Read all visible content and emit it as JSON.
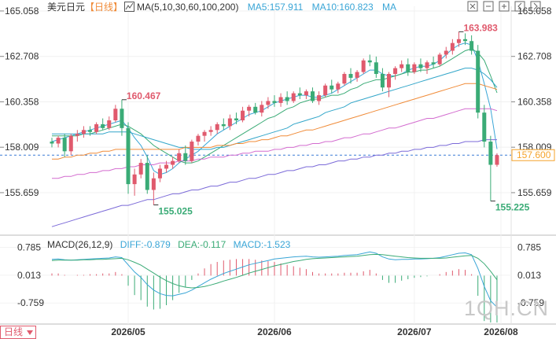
{
  "toolbar": {
    "symbol": "美元日元",
    "period": "【日线】",
    "ma_label": "MA(5,10,30,60,100,200)",
    "ma5": "MA5:157.911",
    "ma10": "MA10:160.823",
    "ma_more": "MA"
  },
  "macd_header": {
    "label": "MACD(26,12,9)",
    "diff": "DIFF:-0.879",
    "dea": "DEA:-0.117",
    "macd": "MACD:-1.523"
  },
  "footer": {
    "period_btn": "日线",
    "watermark": "1QH.CN"
  },
  "colors": {
    "up": "#e05a6d",
    "down": "#3aab76",
    "ma5": "#39a5d6",
    "ma10": "#3aab76",
    "ma30": "#32a6c9",
    "ma60": "#f08b38",
    "ma100": "#d36ccf",
    "ma200": "#7b6ad8",
    "last_price_tag": "#f5a32a",
    "diff": "#39a5d6",
    "dea": "#3aab76"
  },
  "chart_data": [
    {
      "type": "candlestick",
      "y_ticks": [
        "165.058",
        "162.708",
        "160.358",
        "158.009",
        "155.659"
      ],
      "x_ticks": [
        "2026/05",
        "2026/06",
        "2026/07",
        "2026/08"
      ],
      "ylim": [
        153.5,
        165.3
      ],
      "last_price": "157.600",
      "annotations": [
        {
          "text": "160.467",
          "kind": "high"
        },
        {
          "text": "155.025",
          "kind": "low"
        },
        {
          "text": "163.983",
          "kind": "high"
        },
        {
          "text": "155.225",
          "kind": "low"
        }
      ],
      "candles_ohlc": [
        [
          158.3,
          158.5,
          158.0,
          158.2
        ],
        [
          158.2,
          158.6,
          158.0,
          158.5
        ],
        [
          158.5,
          158.7,
          157.5,
          157.8
        ],
        [
          157.8,
          158.7,
          157.6,
          158.6
        ],
        [
          158.6,
          158.9,
          158.3,
          158.7
        ],
        [
          158.7,
          159.1,
          158.5,
          158.9
        ],
        [
          158.9,
          159.1,
          158.6,
          158.8
        ],
        [
          158.8,
          159.3,
          158.7,
          159.2
        ],
        [
          159.2,
          159.5,
          158.9,
          159.0
        ],
        [
          159.0,
          159.6,
          158.9,
          159.4
        ],
        [
          159.4,
          160.2,
          159.3,
          160.0
        ],
        [
          160.0,
          160.467,
          158.6,
          159.0
        ],
        [
          159.0,
          159.3,
          155.6,
          156.1
        ],
        [
          156.1,
          156.9,
          155.5,
          156.6
        ],
        [
          156.6,
          157.4,
          156.4,
          157.2
        ],
        [
          157.2,
          157.6,
          155.6,
          155.8
        ],
        [
          155.8,
          156.7,
          155.025,
          156.4
        ],
        [
          156.4,
          157.1,
          156.2,
          156.9
        ],
        [
          156.9,
          157.3,
          156.7,
          157.1
        ],
        [
          157.1,
          157.5,
          156.9,
          157.3
        ],
        [
          157.3,
          157.9,
          157.2,
          157.7
        ],
        [
          157.7,
          158.1,
          157.1,
          157.3
        ],
        [
          157.3,
          158.4,
          157.2,
          158.3
        ],
        [
          158.3,
          158.7,
          158.1,
          158.6
        ],
        [
          158.6,
          158.9,
          158.3,
          158.8
        ],
        [
          158.8,
          159.1,
          158.6,
          158.9
        ],
        [
          158.9,
          159.3,
          158.7,
          159.2
        ],
        [
          159.2,
          159.5,
          158.9,
          159.1
        ],
        [
          159.1,
          159.7,
          158.9,
          159.5
        ],
        [
          159.5,
          159.8,
          159.2,
          159.4
        ],
        [
          159.4,
          160.1,
          159.3,
          159.9
        ],
        [
          159.9,
          160.2,
          159.6,
          160.1
        ],
        [
          160.1,
          160.3,
          159.7,
          159.8
        ],
        [
          159.8,
          160.4,
          159.6,
          160.2
        ],
        [
          160.2,
          160.6,
          160.0,
          160.4
        ],
        [
          160.4,
          160.7,
          160.1,
          160.3
        ],
        [
          160.3,
          160.8,
          160.1,
          160.6
        ],
        [
          160.6,
          160.9,
          160.2,
          160.4
        ],
        [
          160.4,
          160.9,
          160.3,
          160.8
        ],
        [
          160.8,
          161.1,
          160.5,
          160.7
        ],
        [
          160.7,
          161.0,
          160.5,
          160.9
        ],
        [
          160.9,
          161.1,
          160.3,
          160.4
        ],
        [
          160.4,
          160.9,
          160.2,
          160.7
        ],
        [
          160.7,
          161.3,
          160.6,
          161.2
        ],
        [
          161.2,
          161.5,
          160.8,
          161.0
        ],
        [
          161.0,
          161.4,
          160.8,
          161.3
        ],
        [
          161.3,
          161.9,
          161.2,
          161.8
        ],
        [
          161.8,
          162.1,
          161.3,
          161.6
        ],
        [
          161.6,
          162.0,
          161.4,
          161.9
        ],
        [
          161.9,
          162.6,
          161.8,
          162.5
        ],
        [
          162.5,
          162.8,
          162.2,
          162.4
        ],
        [
          162.4,
          162.7,
          161.6,
          161.8
        ],
        [
          161.8,
          162.1,
          160.9,
          161.1
        ],
        [
          161.1,
          161.9,
          160.6,
          161.8
        ],
        [
          161.8,
          162.2,
          161.5,
          162.1
        ],
        [
          162.1,
          162.5,
          161.9,
          162.3
        ],
        [
          162.3,
          162.6,
          161.7,
          161.9
        ],
        [
          161.9,
          162.4,
          161.8,
          162.3
        ],
        [
          162.3,
          162.6,
          161.9,
          162.1
        ],
        [
          162.1,
          162.5,
          161.8,
          162.4
        ],
        [
          162.4,
          162.7,
          162.1,
          162.3
        ],
        [
          162.3,
          162.9,
          162.2,
          162.8
        ],
        [
          162.8,
          163.2,
          162.6,
          163.0
        ],
        [
          163.0,
          163.6,
          162.8,
          163.4
        ],
        [
          163.4,
          163.983,
          163.2,
          163.6
        ],
        [
          163.6,
          163.9,
          163.3,
          163.5
        ],
        [
          163.5,
          163.8,
          162.8,
          163.0
        ],
        [
          163.0,
          163.3,
          159.5,
          159.8
        ],
        [
          159.8,
          160.2,
          158.0,
          158.3
        ],
        [
          158.3,
          158.6,
          155.225,
          157.1
        ],
        [
          157.1,
          157.7,
          157.0,
          157.6
        ]
      ],
      "ma_series": [
        {
          "name": "MA5",
          "values": [
            158.3,
            158.4,
            158.5,
            158.6,
            158.7,
            158.8,
            158.9,
            159.0,
            159.1,
            159.2,
            159.3,
            159.4,
            159.0,
            158.5,
            158.1,
            157.5,
            156.8,
            156.6,
            156.7,
            156.9,
            157.2,
            157.4,
            157.6,
            157.8,
            158.1,
            158.4,
            158.7,
            158.9,
            159.1,
            159.3,
            159.5,
            159.7,
            159.8,
            159.9,
            160.1,
            160.3,
            160.4,
            160.5,
            160.6,
            160.7,
            160.7,
            160.6,
            160.6,
            160.7,
            160.8,
            161.0,
            161.2,
            161.4,
            161.6,
            161.8,
            162.0,
            162.0,
            161.8,
            161.7,
            161.7,
            161.8,
            162.0,
            162.1,
            162.2,
            162.2,
            162.3,
            162.5,
            162.8,
            163.1,
            163.3,
            163.4,
            163.3,
            162.5,
            161.3,
            160.0,
            157.911
          ]
        },
        {
          "name": "MA10",
          "values": [
            158.6,
            158.6,
            158.6,
            158.6,
            158.6,
            158.7,
            158.7,
            158.8,
            158.9,
            159.0,
            159.1,
            159.2,
            159.1,
            158.9,
            158.7,
            158.4,
            158.1,
            157.9,
            157.7,
            157.5,
            157.3,
            157.2,
            157.2,
            157.3,
            157.5,
            157.7,
            157.9,
            158.1,
            158.3,
            158.5,
            158.7,
            158.9,
            159.1,
            159.3,
            159.5,
            159.6,
            159.8,
            160.0,
            160.1,
            160.3,
            160.4,
            160.5,
            160.5,
            160.6,
            160.7,
            160.7,
            160.8,
            161.0,
            161.1,
            161.3,
            161.4,
            161.5,
            161.5,
            161.6,
            161.7,
            161.8,
            161.9,
            161.9,
            162.0,
            162.0,
            162.1,
            162.2,
            162.4,
            162.6,
            162.8,
            163.0,
            163.1,
            162.9,
            162.5,
            161.7,
            160.823
          ]
        },
        {
          "name": "MA30",
          "values": [
            158.7,
            158.7,
            158.7,
            158.7,
            158.7,
            158.7,
            158.7,
            158.7,
            158.7,
            158.8,
            158.8,
            158.8,
            158.8,
            158.7,
            158.6,
            158.5,
            158.4,
            158.3,
            158.2,
            158.1,
            158.0,
            158.0,
            157.9,
            157.9,
            157.9,
            157.9,
            158.0,
            158.0,
            158.1,
            158.2,
            158.3,
            158.4,
            158.5,
            158.6,
            158.7,
            158.8,
            158.9,
            159.0,
            159.2,
            159.3,
            159.4,
            159.5,
            159.6,
            159.8,
            159.9,
            160.0,
            160.1,
            160.3,
            160.4,
            160.5,
            160.6,
            160.7,
            160.8,
            160.9,
            161.0,
            161.1,
            161.2,
            161.3,
            161.4,
            161.5,
            161.6,
            161.7,
            161.8,
            161.9,
            162.0,
            162.1,
            162.1,
            162.0,
            161.8,
            161.5,
            161.1
          ]
        },
        {
          "name": "MA60",
          "values": [
            157.4,
            157.4,
            157.5,
            157.5,
            157.6,
            157.6,
            157.7,
            157.7,
            157.8,
            157.8,
            157.9,
            157.9,
            157.9,
            157.9,
            157.9,
            157.9,
            157.9,
            157.9,
            157.9,
            157.9,
            157.9,
            158.0,
            158.0,
            158.0,
            158.0,
            158.0,
            158.1,
            158.1,
            158.1,
            158.2,
            158.2,
            158.3,
            158.3,
            158.4,
            158.4,
            158.5,
            158.6,
            158.6,
            158.7,
            158.8,
            158.9,
            158.9,
            159.0,
            159.1,
            159.2,
            159.3,
            159.4,
            159.5,
            159.6,
            159.7,
            159.8,
            159.9,
            160.0,
            160.1,
            160.2,
            160.3,
            160.4,
            160.5,
            160.6,
            160.7,
            160.8,
            160.9,
            161.0,
            161.1,
            161.2,
            161.3,
            161.3,
            161.3,
            161.2,
            161.1,
            161.0
          ]
        },
        {
          "name": "MA100",
          "values": [
            156.4,
            156.4,
            156.5,
            156.5,
            156.6,
            156.6,
            156.7,
            156.7,
            156.8,
            156.8,
            156.9,
            156.9,
            157.0,
            157.0,
            157.1,
            157.1,
            157.1,
            157.2,
            157.2,
            157.2,
            157.3,
            157.3,
            157.3,
            157.4,
            157.4,
            157.5,
            157.5,
            157.5,
            157.6,
            157.6,
            157.7,
            157.7,
            157.8,
            157.8,
            157.8,
            157.9,
            157.9,
            158.0,
            158.0,
            158.1,
            158.1,
            158.2,
            158.2,
            158.3,
            158.3,
            158.4,
            158.5,
            158.5,
            158.6,
            158.7,
            158.7,
            158.8,
            158.9,
            159.0,
            159.0,
            159.1,
            159.2,
            159.3,
            159.4,
            159.5,
            159.5,
            159.6,
            159.7,
            159.8,
            159.9,
            160.0,
            160.0,
            160.0,
            160.0,
            160.0,
            159.9
          ]
        },
        {
          "name": "MA200",
          "values": [
            153.9,
            154.0,
            154.1,
            154.2,
            154.3,
            154.4,
            154.5,
            154.6,
            154.7,
            154.8,
            154.9,
            155.0,
            155.0,
            155.1,
            155.2,
            155.3,
            155.3,
            155.4,
            155.5,
            155.6,
            155.6,
            155.7,
            155.8,
            155.8,
            155.9,
            156.0,
            156.0,
            156.1,
            156.2,
            156.2,
            156.3,
            156.4,
            156.4,
            156.5,
            156.6,
            156.6,
            156.7,
            156.8,
            156.8,
            156.9,
            157.0,
            157.0,
            157.1,
            157.1,
            157.2,
            157.3,
            157.3,
            157.4,
            157.4,
            157.5,
            157.5,
            157.6,
            157.6,
            157.7,
            157.7,
            157.8,
            157.8,
            157.9,
            157.9,
            158.0,
            158.0,
            158.1,
            158.1,
            158.2,
            158.2,
            158.3,
            158.3,
            158.3,
            158.4,
            158.4,
            158.4
          ]
        }
      ]
    },
    {
      "type": "macd",
      "y_ticks": [
        "0.785",
        "0.013",
        "-0.759"
      ],
      "ylim": [
        -1.3,
        1.1
      ],
      "diff": [
        0.45,
        0.46,
        0.44,
        0.43,
        0.44,
        0.45,
        0.46,
        0.47,
        0.48,
        0.49,
        0.52,
        0.5,
        0.3,
        0.1,
        -0.05,
        -0.25,
        -0.4,
        -0.5,
        -0.55,
        -0.56,
        -0.52,
        -0.48,
        -0.4,
        -0.3,
        -0.2,
        -0.1,
        -0.02,
        0.06,
        0.12,
        0.18,
        0.24,
        0.3,
        0.34,
        0.38,
        0.42,
        0.46,
        0.48,
        0.5,
        0.52,
        0.53,
        0.54,
        0.52,
        0.51,
        0.52,
        0.53,
        0.54,
        0.56,
        0.57,
        0.58,
        0.62,
        0.66,
        0.62,
        0.52,
        0.46,
        0.44,
        0.45,
        0.45,
        0.46,
        0.46,
        0.47,
        0.48,
        0.5,
        0.54,
        0.58,
        0.62,
        0.63,
        0.58,
        0.2,
        -0.3,
        -0.7,
        -0.879
      ],
      "dea": [
        0.42,
        0.43,
        0.43,
        0.43,
        0.43,
        0.44,
        0.44,
        0.45,
        0.45,
        0.46,
        0.47,
        0.48,
        0.44,
        0.37,
        0.29,
        0.18,
        0.07,
        -0.04,
        -0.14,
        -0.22,
        -0.28,
        -0.32,
        -0.34,
        -0.33,
        -0.3,
        -0.26,
        -0.21,
        -0.15,
        -0.1,
        -0.05,
        0.01,
        0.07,
        0.12,
        0.17,
        0.22,
        0.27,
        0.31,
        0.35,
        0.39,
        0.42,
        0.45,
        0.47,
        0.48,
        0.49,
        0.5,
        0.51,
        0.52,
        0.53,
        0.54,
        0.56,
        0.58,
        0.59,
        0.58,
        0.56,
        0.54,
        0.52,
        0.5,
        0.49,
        0.48,
        0.48,
        0.48,
        0.48,
        0.49,
        0.51,
        0.53,
        0.55,
        0.56,
        0.48,
        0.33,
        0.12,
        -0.117
      ],
      "hist": [
        0.06,
        0.06,
        0.02,
        0.0,
        0.02,
        0.02,
        0.04,
        0.04,
        0.06,
        0.06,
        0.1,
        0.04,
        -0.28,
        -0.54,
        -0.68,
        -0.86,
        -0.94,
        -0.92,
        -0.82,
        -0.68,
        -0.48,
        -0.32,
        -0.12,
        0.06,
        0.2,
        0.32,
        0.38,
        0.42,
        0.44,
        0.46,
        0.46,
        0.46,
        0.44,
        0.42,
        0.4,
        0.38,
        0.34,
        0.3,
        0.26,
        0.22,
        0.18,
        0.1,
        0.06,
        0.06,
        0.06,
        0.06,
        0.08,
        0.08,
        0.08,
        0.12,
        0.16,
        0.06,
        -0.12,
        -0.2,
        -0.2,
        -0.14,
        -0.1,
        -0.06,
        -0.04,
        -0.02,
        0.0,
        0.04,
        0.1,
        0.14,
        0.18,
        0.16,
        0.04,
        -0.56,
        -1.26,
        -1.64,
        -1.523
      ]
    }
  ]
}
